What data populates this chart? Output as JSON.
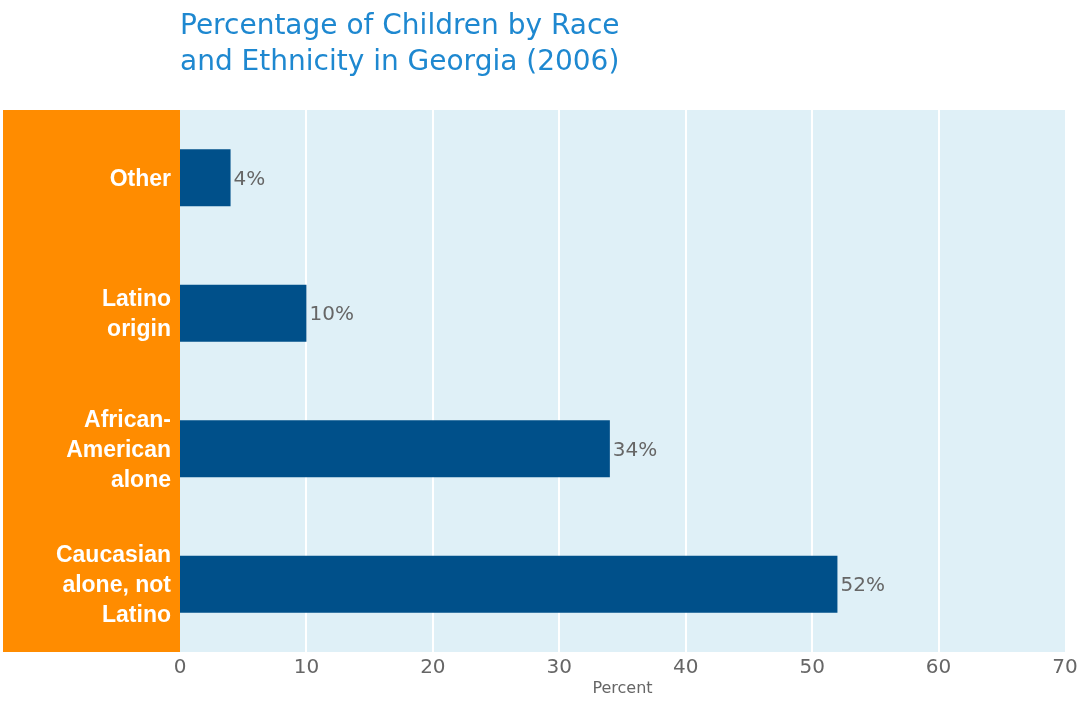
{
  "chart_data": {
    "type": "bar",
    "orientation": "horizontal",
    "title": "Percentage of Children by Race and Ethnicity in Georgia (2006)",
    "xlabel": "Percent",
    "categories": [
      "Other",
      "Latino origin",
      "African-American alone",
      "Caucasian alone, not Latino"
    ],
    "values": [
      4,
      10,
      34,
      52
    ],
    "color": "#00508a",
    "value_labels": [
      "4%",
      "10%",
      "34%",
      "52%"
    ],
    "xlim": [
      0,
      70
    ],
    "xticks": [
      0,
      10,
      20,
      30,
      40,
      50,
      60,
      70
    ],
    "grid": "x"
  }
}
